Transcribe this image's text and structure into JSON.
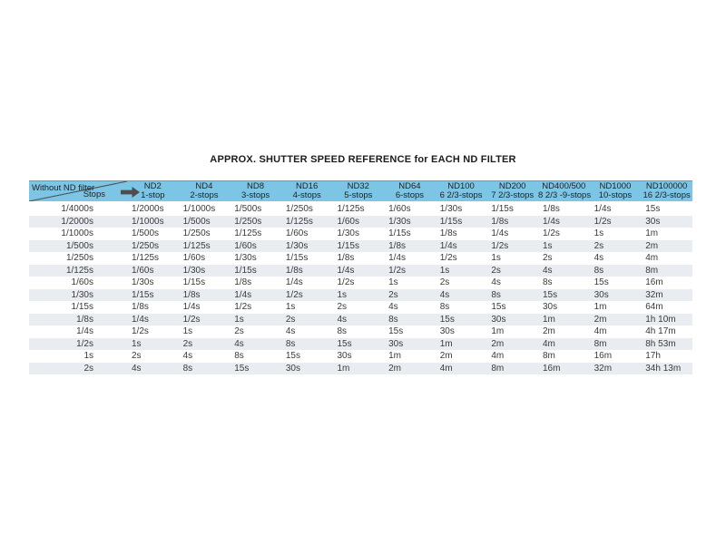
{
  "page": {
    "background": "#ffffff"
  },
  "title": "APPROX. SHUTTER SPEED REFERENCE for EACH ND FILTER",
  "corner": {
    "top_label": "Without ND filter",
    "bottom_label": "Stops",
    "arrow_icon": "right-arrow"
  },
  "colors": {
    "header_bg": "#7cc5e5",
    "header_top_edge": "#5a9fc4",
    "row_bg": "#ffffff",
    "row_alt_bg": "#e9edf2",
    "text": "#3a3a3a",
    "title_text": "#1c1c1c",
    "arrow_and_diagonal": "#4d4d4d"
  },
  "chart_data": {
    "type": "table",
    "title": "APPROX. SHUTTER SPEED REFERENCE for EACH ND FILTER",
    "corner_header": {
      "top": "Without ND filter",
      "bottom": "Stops"
    },
    "columns": [
      {
        "name": "ND2",
        "stops": "1-stop"
      },
      {
        "name": "ND4",
        "stops": "2-stops"
      },
      {
        "name": "ND8",
        "stops": "3-stops"
      },
      {
        "name": "ND16",
        "stops": "4-stops"
      },
      {
        "name": "ND32",
        "stops": "5-stops"
      },
      {
        "name": "ND64",
        "stops": "6-stops"
      },
      {
        "name": "ND100",
        "stops": "6 2/3-stops"
      },
      {
        "name": "ND200",
        "stops": "7 2/3-stops"
      },
      {
        "name": "ND400/500",
        "stops": "8 2/3 -9-stops"
      },
      {
        "name": "ND1000",
        "stops": "10-stops"
      },
      {
        "name": "ND100000",
        "stops": "16 2/3-stops"
      }
    ],
    "rows": [
      [
        "1/4000s",
        "1/2000s",
        "1/1000s",
        "1/500s",
        "1/250s",
        "1/125s",
        "1/60s",
        "1/30s",
        "1/15s",
        "1/8s",
        "1/4s",
        "15s"
      ],
      [
        "1/2000s",
        "1/1000s",
        "1/500s",
        "1/250s",
        "1/125s",
        "1/60s",
        "1/30s",
        "1/15s",
        "1/8s",
        "1/4s",
        "1/2s",
        "30s"
      ],
      [
        "1/1000s",
        "1/500s",
        "1/250s",
        "1/125s",
        "1/60s",
        "1/30s",
        "1/15s",
        "1/8s",
        "1/4s",
        "1/2s",
        "1s",
        "1m"
      ],
      [
        "1/500s",
        "1/250s",
        "1/125s",
        "1/60s",
        "1/30s",
        "1/15s",
        "1/8s",
        "1/4s",
        "1/2s",
        "1s",
        "2s",
        "2m"
      ],
      [
        "1/250s",
        "1/125s",
        "1/60s",
        "1/30s",
        "1/15s",
        "1/8s",
        "1/4s",
        "1/2s",
        "1s",
        "2s",
        "4s",
        "4m"
      ],
      [
        "1/125s",
        "1/60s",
        "1/30s",
        "1/15s",
        "1/8s",
        "1/4s",
        "1/2s",
        "1s",
        "2s",
        "4s",
        "8s",
        "8m"
      ],
      [
        "1/60s",
        "1/30s",
        "1/15s",
        "1/8s",
        "1/4s",
        "1/2s",
        "1s",
        "2s",
        "4s",
        "8s",
        "15s",
        "16m"
      ],
      [
        "1/30s",
        "1/15s",
        "1/8s",
        "1/4s",
        "1/2s",
        "1s",
        "2s",
        "4s",
        "8s",
        "15s",
        "30s",
        "32m"
      ],
      [
        "1/15s",
        "1/8s",
        "1/4s",
        "1/2s",
        "1s",
        "2s",
        "4s",
        "8s",
        "15s",
        "30s",
        "1m",
        "64m"
      ],
      [
        "1/8s",
        "1/4s",
        "1/2s",
        "1s",
        "2s",
        "4s",
        "8s",
        "15s",
        "30s",
        "1m",
        "2m",
        "1h 10m"
      ],
      [
        "1/4s",
        "1/2s",
        "1s",
        "2s",
        "4s",
        "8s",
        "15s",
        "30s",
        "1m",
        "2m",
        "4m",
        "4h 17m"
      ],
      [
        "1/2s",
        "1s",
        "2s",
        "4s",
        "8s",
        "15s",
        "30s",
        "1m",
        "2m",
        "4m",
        "8m",
        "8h 53m"
      ],
      [
        "1s",
        "2s",
        "4s",
        "8s",
        "15s",
        "30s",
        "1m",
        "2m",
        "4m",
        "8m",
        "16m",
        "17h"
      ],
      [
        "2s",
        "4s",
        "8s",
        "15s",
        "30s",
        "1m",
        "2m",
        "4m",
        "8m",
        "16m",
        "32m",
        "34h 13m"
      ]
    ],
    "layout": {
      "header_position": "top",
      "row_striping": true,
      "first_column_role": "base shutter speed without ND filter"
    }
  }
}
